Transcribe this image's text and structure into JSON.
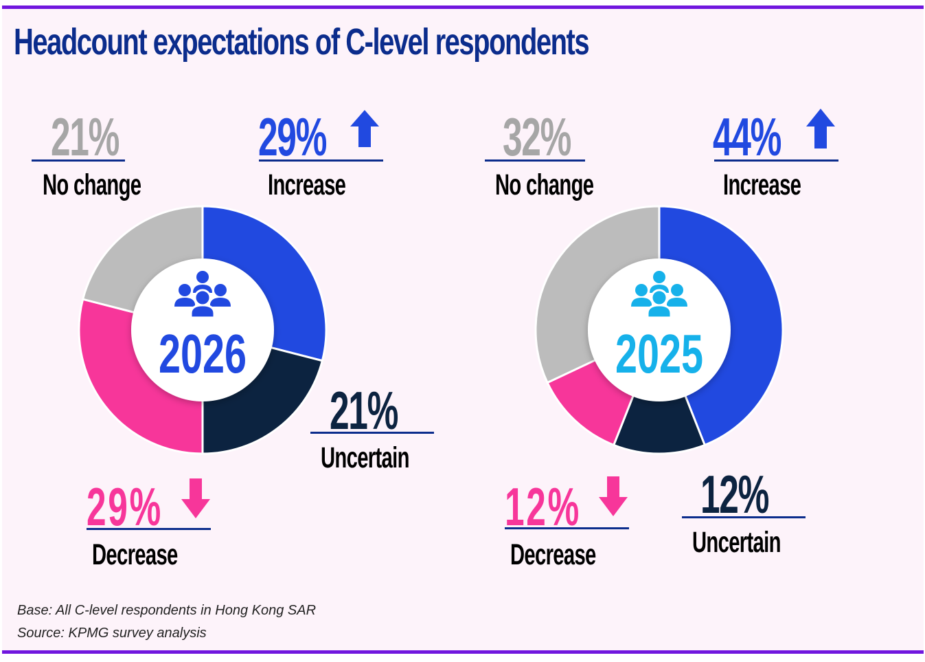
{
  "title": "Headcount expectations of  C-level respondents",
  "colors": {
    "increase": "#2149e0",
    "uncertain": "#0c2340",
    "decrease": "#f7369a",
    "no_change": "#bcbcbc",
    "no_change_text": "#a6a6a6",
    "year_2026": "#2149e0",
    "year_2025": "#16b1ea",
    "title": "#0b2c8c",
    "accent_bar": "#7016de"
  },
  "charts": [
    {
      "year": "2026",
      "no_change": {
        "value": "21%",
        "label": "No change"
      },
      "increase": {
        "value": "29%",
        "label": "Increase"
      },
      "uncertain": {
        "value": "21%",
        "label": "Uncertain"
      },
      "decrease": {
        "value": "29%",
        "label": "Decrease"
      }
    },
    {
      "year": "2025",
      "no_change": {
        "value": "32%",
        "label": "No change"
      },
      "increase": {
        "value": "44%",
        "label": "Increase"
      },
      "uncertain": {
        "value": "12%",
        "label": "Uncertain"
      },
      "decrease": {
        "value": "12%",
        "label": "Decrease"
      }
    }
  ],
  "footnotes": {
    "base": "Base: All C-level respondents in Hong Kong SAR",
    "source": "Source: KPMG survey analysis"
  },
  "chart_data": [
    {
      "type": "pie",
      "title": "2026",
      "categories": [
        "Increase",
        "Uncertain",
        "Decrease",
        "No change"
      ],
      "values": [
        29,
        21,
        29,
        21
      ],
      "unit": "%",
      "style": "donut"
    },
    {
      "type": "pie",
      "title": "2025",
      "categories": [
        "Increase",
        "Uncertain",
        "Decrease",
        "No change"
      ],
      "values": [
        44,
        12,
        12,
        32
      ],
      "unit": "%",
      "style": "donut"
    }
  ]
}
